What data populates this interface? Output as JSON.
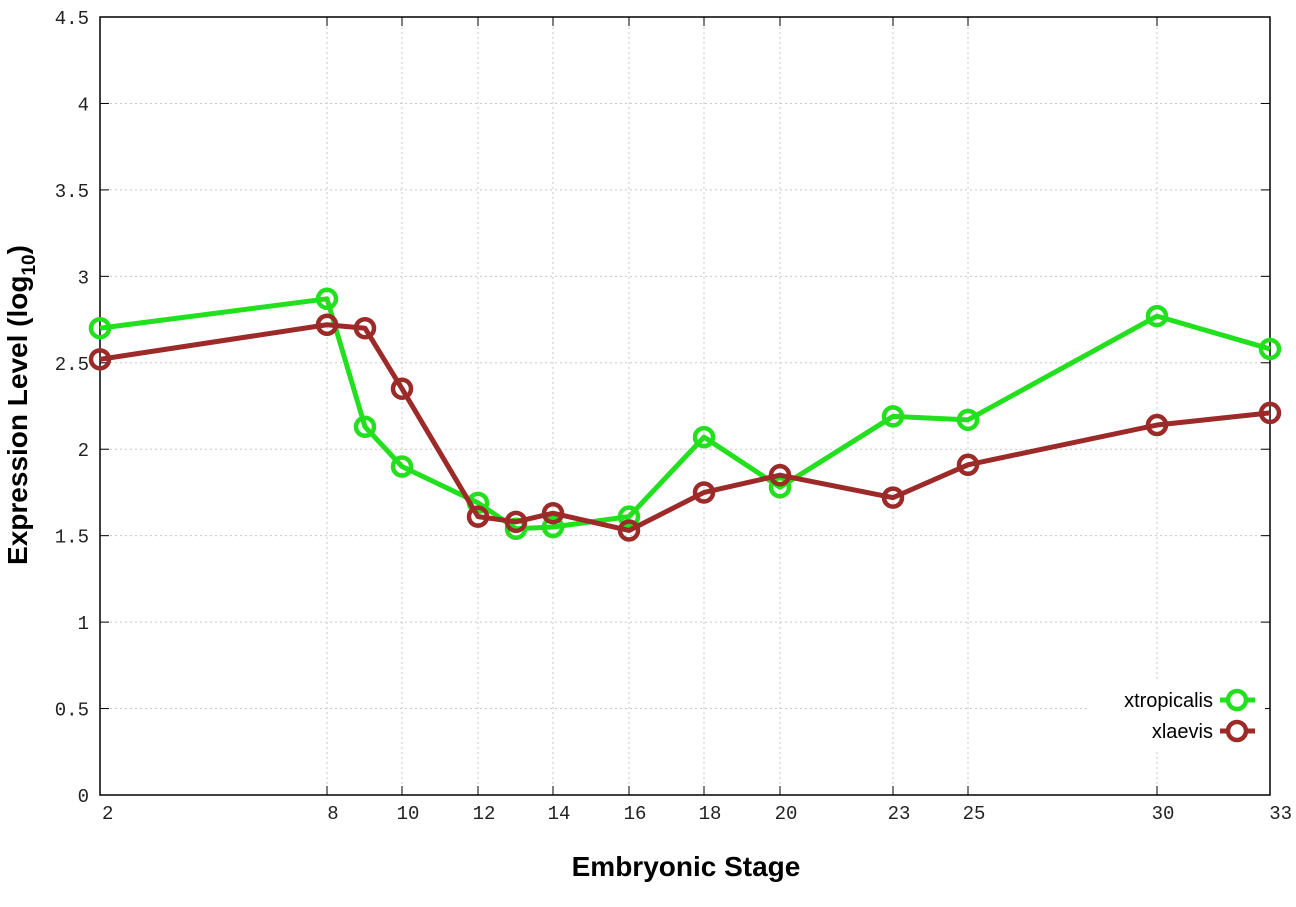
{
  "chart_data": {
    "type": "line",
    "xlabel": "Embryonic Stage",
    "ylabel": {
      "main": "Expression Level (log",
      "sub": "10",
      "end": ")"
    },
    "xticks": [
      "2",
      "8",
      "10",
      "12",
      "14",
      "16",
      "18",
      "20",
      "23",
      "25",
      "30",
      "33"
    ],
    "yticks": [
      "0",
      "0.5",
      "1",
      "1.5",
      "2",
      "2.5",
      "3",
      "3.5",
      "4",
      "4.5"
    ],
    "ylim": [
      0,
      4.5
    ],
    "xlim": [
      2,
      33
    ],
    "grid": true,
    "legend_position": "bottom-right",
    "x": [
      2,
      8,
      9,
      10,
      12,
      13,
      14,
      16,
      18,
      20,
      23,
      25,
      30,
      33
    ],
    "series": [
      {
        "name": "xtropicalis",
        "color": "#22e01e",
        "values": [
          2.7,
          2.87,
          2.13,
          1.9,
          1.69,
          1.54,
          1.55,
          1.61,
          2.07,
          1.78,
          2.19,
          2.17,
          2.77,
          2.58
        ]
      },
      {
        "name": "xlaevis",
        "color": "#9b2a28",
        "values": [
          2.52,
          2.72,
          2.7,
          2.35,
          1.61,
          1.58,
          1.63,
          1.53,
          1.75,
          1.85,
          1.72,
          1.91,
          2.14,
          2.21
        ]
      }
    ]
  }
}
